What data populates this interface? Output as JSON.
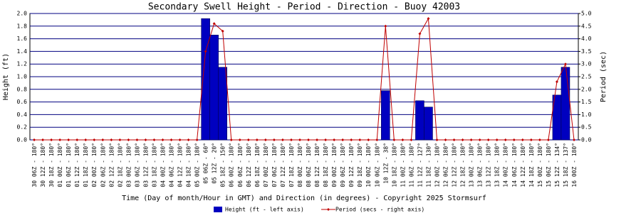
{
  "chart_data": {
    "type": "bar-line",
    "title": "Secondary Swell Height - Period - Direction - Buoy 42003",
    "x_label": "Time (Day of month/Hour in GMT) and Direction (in degrees) - Copyright 2025 Stormsurf",
    "y_label": "Height (ft)",
    "y2_label": "Period (sec)",
    "categories": [
      "30 06Z - 180°",
      "30 12Z - 180°",
      "30 18Z - 180°",
      "01 00Z - 180°",
      "01 06Z - 180°",
      "01 12Z - 180°",
      "01 18Z - 180°",
      "02 00Z - 180°",
      "02 06Z - 180°",
      "02 12Z - 180°",
      "02 18Z - 180°",
      "03 00Z - 180°",
      "03 06Z - 180°",
      "03 12Z - 180°",
      "03 18Z - 180°",
      "04 00Z - 180°",
      "04 06Z - 180°",
      "04 12Z - 180°",
      "04 18Z - 180°",
      "05 00Z - 180°",
      "05 06Z - 60°",
      "05 12Z - 20°",
      "05 18Z - 150°",
      "06 00Z - 180°",
      "06 06Z - 180°",
      "06 12Z - 180°",
      "06 18Z - 180°",
      "07 00Z - 180°",
      "07 06Z - 180°",
      "07 12Z - 180°",
      "07 18Z - 180°",
      "08 00Z - 180°",
      "08 06Z - 180°",
      "08 12Z - 180°",
      "08 18Z - 180°",
      "09 00Z - 180°",
      "09 06Z - 180°",
      "09 12Z - 180°",
      "09 18Z - 180°",
      "10 00Z - 180°",
      "10 06Z - 180°",
      "10 12Z - 38°",
      "10 18Z - 180°",
      "11 00Z - 180°",
      "11 06Z - 180°",
      "11 12Z - 127°",
      "11 18Z - 130°",
      "12 00Z - 180°",
      "12 06Z - 180°",
      "12 12Z - 180°",
      "12 18Z - 180°",
      "13 00Z - 180°",
      "13 06Z - 180°",
      "13 12Z - 180°",
      "13 18Z - 180°",
      "14 00Z - 180°",
      "14 06Z - 180°",
      "14 12Z - 180°",
      "14 18Z - 180°",
      "15 00Z - 180°",
      "15 06Z - 180°",
      "15 12Z - 134°",
      "15 18Z - 137°",
      "16 00Z - 180°"
    ],
    "series": [
      {
        "name": "Height (ft - left axis)",
        "color": "#0000c0",
        "kind": "bar",
        "values": [
          0,
          0,
          0,
          0,
          0,
          0,
          0,
          0,
          0,
          0,
          0,
          0,
          0,
          0,
          0,
          0,
          0,
          0,
          0,
          0,
          1.92,
          1.66,
          1.15,
          0,
          0,
          0,
          0,
          0,
          0,
          0,
          0,
          0,
          0,
          0,
          0,
          0,
          0,
          0,
          0,
          0,
          0,
          0.78,
          0,
          0,
          0,
          0.62,
          0.52,
          0,
          0,
          0,
          0,
          0,
          0,
          0,
          0,
          0,
          0,
          0,
          0,
          0,
          0,
          0.71,
          1.15,
          0
        ]
      },
      {
        "name": "Period (secs - right axis)",
        "color": "#c00000",
        "kind": "line",
        "axis": "y2",
        "values": [
          0,
          0,
          0,
          0,
          0,
          0,
          0,
          0,
          0,
          0,
          0,
          0,
          0,
          0,
          0,
          0,
          0,
          0,
          0,
          0,
          3.5,
          4.6,
          4.3,
          0,
          0,
          0,
          0,
          0,
          0,
          0,
          0,
          0,
          0,
          0,
          0,
          0,
          0,
          0,
          0,
          0,
          0,
          4.5,
          0,
          0,
          0,
          4.2,
          4.8,
          0,
          0,
          0,
          0,
          0,
          0,
          0,
          0,
          0,
          0,
          0,
          0,
          0,
          0,
          2.3,
          3.0,
          0
        ]
      }
    ],
    "ylim": [
      0,
      2
    ],
    "yticks": [
      {
        "value": 0,
        "label": "0.0"
      },
      {
        "value": 0.2,
        "label": "0.2"
      },
      {
        "value": 0.4,
        "label": "0.4"
      },
      {
        "value": 0.6,
        "label": "0.6"
      },
      {
        "value": 0.8,
        "label": "0.8"
      },
      {
        "value": 1,
        "label": "1.0"
      },
      {
        "value": 1.2,
        "label": "1.2"
      },
      {
        "value": 1.4,
        "label": "1.4"
      },
      {
        "value": 1.6,
        "label": "1.6"
      },
      {
        "value": 1.8,
        "label": "1.8"
      },
      {
        "value": 2,
        "label": "2.0"
      }
    ],
    "y2lim": [
      0,
      5
    ],
    "y2ticks": [
      {
        "value": 0,
        "label": "0.0"
      },
      {
        "value": 0.5,
        "label": "0.5"
      },
      {
        "value": 1,
        "label": "1.0"
      },
      {
        "value": 1.5,
        "label": "1.5"
      },
      {
        "value": 2,
        "label": "2.0"
      },
      {
        "value": 2.5,
        "label": "2.5"
      },
      {
        "value": 3,
        "label": "3.0"
      },
      {
        "value": 3.5,
        "label": "3.5"
      },
      {
        "value": 4,
        "label": "4.0"
      },
      {
        "value": 4.5,
        "label": "4.5"
      },
      {
        "value": 5,
        "label": "5.0"
      }
    ],
    "grid": true
  }
}
